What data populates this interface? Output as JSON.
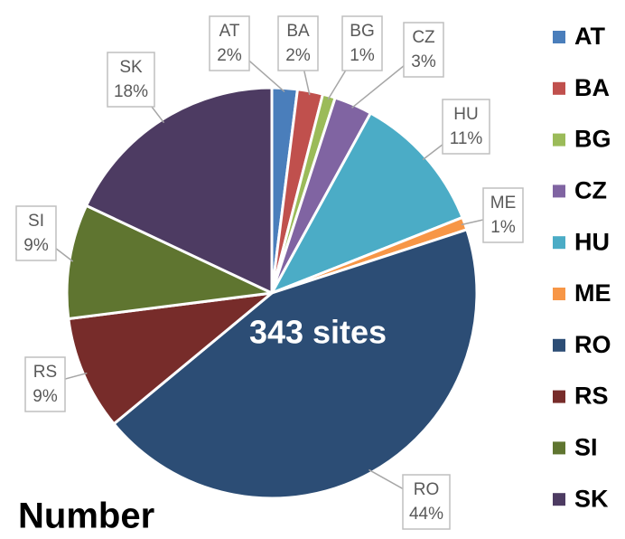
{
  "chart_data": {
    "type": "pie",
    "categories": [
      "AT",
      "BA",
      "BG",
      "CZ",
      "HU",
      "ME",
      "RO",
      "RS",
      "SI",
      "SK"
    ],
    "values": [
      2,
      2,
      1,
      3,
      11,
      1,
      44,
      9,
      9,
      18
    ],
    "value_labels": [
      "2%",
      "2%",
      "1%",
      "3%",
      "11%",
      "1%",
      "44%",
      "9%",
      "9%",
      "18%"
    ],
    "colors": [
      "#4a7ebb",
      "#c0504d",
      "#9bbb59",
      "#8064a2",
      "#4bacc6",
      "#f79646",
      "#2c4d75",
      "#772c2a",
      "#5f7530",
      "#4d3b62"
    ],
    "annotations": [
      "343 sites",
      "Number"
    ],
    "legend": "right"
  }
}
